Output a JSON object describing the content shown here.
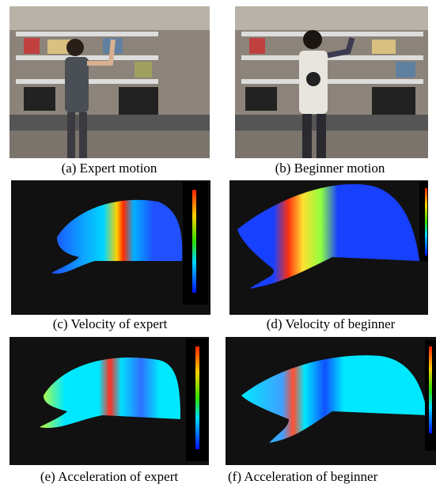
{
  "figure": {
    "panels": [
      {
        "caption": "(a) Expert motion"
      },
      {
        "caption": "(b) Beginner motion"
      },
      {
        "caption": "(c) Velocity of expert"
      },
      {
        "caption": "(d) Velocity of beginner"
      },
      {
        "caption": "(e) Acceleration of expert"
      },
      {
        "caption": "(f) Acceleration of beginner"
      }
    ]
  }
}
